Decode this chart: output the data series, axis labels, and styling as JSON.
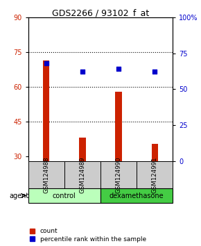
{
  "title": "GDS2266 / 93102_f_at",
  "samples": [
    "GSM124988",
    "GSM124989",
    "GSM124990",
    "GSM124991"
  ],
  "count_values": [
    71.5,
    38.0,
    58.0,
    35.5
  ],
  "percentile_values": [
    68,
    62,
    64,
    62
  ],
  "ylim_left": [
    28,
    90
  ],
  "ylim_right": [
    0,
    100
  ],
  "yticks_left": [
    30,
    45,
    60,
    75,
    90
  ],
  "yticks_right": [
    0,
    25,
    50,
    75,
    100
  ],
  "ytick_labels_right": [
    "0",
    "25",
    "50",
    "75",
    "100%"
  ],
  "bar_color": "#cc2200",
  "dot_color": "#0000cc",
  "grid_yticks": [
    45,
    60,
    75
  ],
  "groups": [
    {
      "label": "control",
      "samples": [
        0,
        1
      ],
      "color": "#bbffbb"
    },
    {
      "label": "dexamethasone",
      "samples": [
        2,
        3
      ],
      "color": "#44cc44"
    }
  ],
  "legend_items": [
    {
      "label": "count",
      "color": "#cc2200"
    },
    {
      "label": "percentile rank within the sample",
      "color": "#0000cc"
    }
  ],
  "agent_label": "agent",
  "background_color": "#ffffff",
  "sample_box_color": "#cccccc",
  "title_fontsize": 9,
  "tick_fontsize": 7,
  "bar_width": 0.18
}
